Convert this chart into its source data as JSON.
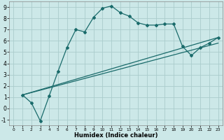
{
  "xlabel": "Humidex (Indice chaleur)",
  "background_color": "#cce8e8",
  "grid_color": "#aacccc",
  "line_color": "#1a6b6b",
  "xlim": [
    -0.5,
    23.5
  ],
  "ylim": [
    -1.5,
    9.5
  ],
  "xticks": [
    0,
    1,
    2,
    3,
    4,
    5,
    6,
    7,
    8,
    9,
    10,
    11,
    12,
    13,
    14,
    15,
    16,
    17,
    18,
    19,
    20,
    21,
    22,
    23
  ],
  "yticks": [
    -1,
    0,
    1,
    2,
    3,
    4,
    5,
    6,
    7,
    8,
    9
  ],
  "line1_x": [
    1,
    2,
    3,
    4,
    5,
    6,
    7,
    8,
    9,
    10,
    11,
    12,
    13,
    14,
    15,
    16,
    17,
    18,
    19,
    20,
    21,
    22,
    23
  ],
  "line1_y": [
    1.2,
    0.5,
    -1.1,
    1.1,
    3.3,
    5.4,
    7.0,
    6.8,
    8.1,
    8.9,
    9.1,
    8.5,
    8.2,
    7.6,
    7.4,
    7.4,
    7.5,
    7.5,
    5.5,
    4.7,
    5.4,
    5.8,
    6.3
  ],
  "line2_x": [
    1,
    23
  ],
  "line2_y": [
    1.2,
    6.3
  ],
  "line3_x": [
    1,
    23
  ],
  "line3_y": [
    1.2,
    5.8
  ],
  "xlabel_fontsize": 6.0,
  "tick_fontsize_x": 4.2,
  "tick_fontsize_y": 5.5
}
